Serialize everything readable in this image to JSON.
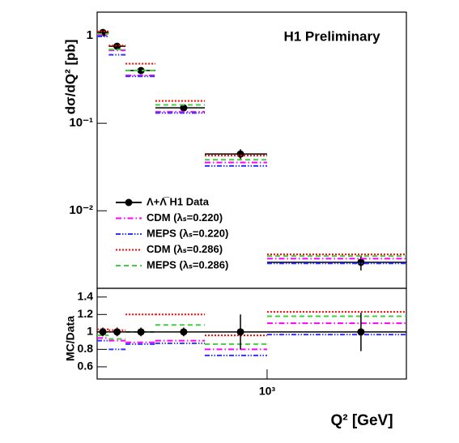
{
  "chart_data": [
    {
      "type": "errorbar",
      "title": "H1 Preliminary",
      "ylabel": "dσ/dQ² [pb]",
      "xlog": true,
      "ylog": true,
      "legend": "lower-left",
      "xlim": [
        100,
        6600
      ],
      "ylim": [
        0.0013,
        1.86
      ],
      "yticks": [
        {
          "value": 1,
          "label": "1"
        },
        {
          "value": 0.1,
          "label": "10⁻¹"
        },
        {
          "value": 0.01,
          "label": "10⁻²"
        }
      ],
      "bins": [
        100,
        117,
        147,
        220,
        430,
        1000,
        6600
      ],
      "x": [
        108,
        131,
        181,
        323,
        697,
        3567
      ],
      "series": [
        {
          "name": "Λ+Λ̅ H1 Data",
          "color": "#000000",
          "style": "solid",
          "values": [
            1.09,
            0.758,
            0.4,
            0.15,
            0.0445,
            0.00258
          ],
          "errors": [
            0.05,
            0.03,
            0.02,
            0.008,
            0.006,
            0.0005
          ]
        },
        {
          "name": "CDM (λₛ=0.220)",
          "color": "#ff00ff",
          "style": "dashdot",
          "values": [
            1.01,
            0.682,
            0.352,
            0.135,
            0.0356,
            0.00284
          ]
        },
        {
          "name": "MEPS (λₛ=0.220)",
          "color": "#3333ff",
          "style": "dashdotdot",
          "values": [
            0.981,
            0.606,
            0.344,
            0.131,
            0.0325,
            0.0025
          ]
        },
        {
          "name": "CDM (λₛ=0.286)",
          "color": "#ff0000",
          "style": "dotted",
          "values": [
            1.12,
            0.773,
            0.48,
            0.18,
            0.0427,
            0.00317
          ]
        },
        {
          "name": "MEPS (λₛ=0.286)",
          "color": "#44cc44",
          "style": "dashed",
          "values": [
            1.05,
            0.697,
            0.4,
            0.162,
            0.0383,
            0.00304
          ]
        }
      ]
    },
    {
      "type": "errorbar",
      "ylabel": "MC/Data",
      "xlabel": "Q² [GeV]",
      "xlog": true,
      "ylog": false,
      "xlim": [
        100,
        6600
      ],
      "ylim": [
        0.46,
        1.5
      ],
      "xticks": [
        {
          "value": 1000,
          "label": "10³"
        }
      ],
      "yticks": [
        0.6,
        0.8,
        1,
        1.2,
        1.4
      ],
      "bins": [
        100,
        117,
        147,
        220,
        430,
        1000,
        6600
      ],
      "x": [
        108,
        131,
        181,
        323,
        697,
        3567
      ],
      "series": [
        {
          "color": "#ff00ff",
          "style": "dashdot",
          "values": [
            0.93,
            0.9,
            0.88,
            0.9,
            0.8,
            1.1
          ]
        },
        {
          "color": "#3333ff",
          "style": "dashdotdot",
          "values": [
            0.9,
            0.8,
            0.86,
            0.87,
            0.73,
            0.97
          ]
        },
        {
          "color": "#ff0000",
          "style": "dotted",
          "values": [
            1.03,
            1.02,
            1.2,
            1.2,
            0.96,
            1.23
          ]
        },
        {
          "color": "#44cc44",
          "style": "dashed",
          "values": [
            0.96,
            0.92,
            1.0,
            1.08,
            0.86,
            1.18
          ]
        },
        {
          "color": "#000000",
          "style": "solid",
          "values": [
            1,
            1,
            1,
            1,
            1,
            1
          ],
          "errors": [
            0.05,
            0.05,
            0.05,
            0.05,
            0.2,
            0.22
          ]
        }
      ]
    }
  ]
}
